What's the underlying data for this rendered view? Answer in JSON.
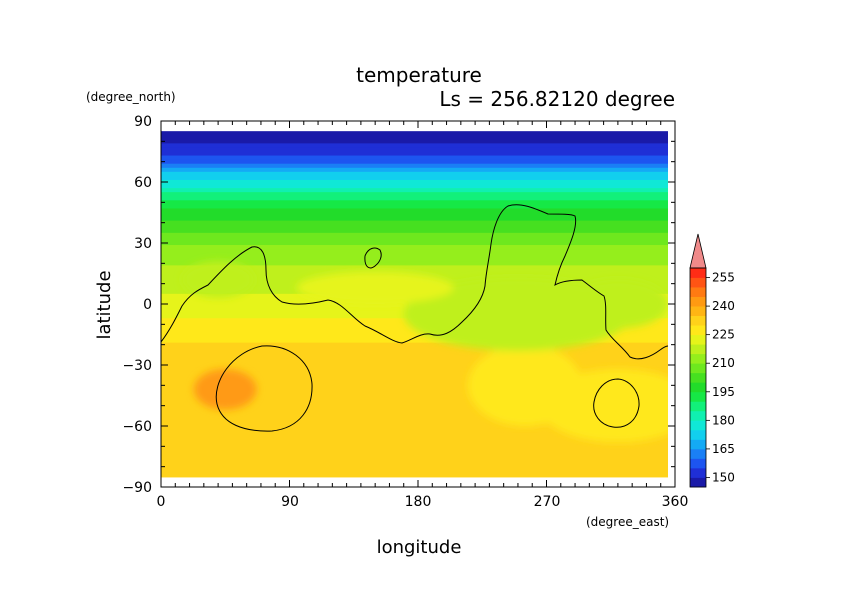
{
  "chart_data": {
    "type": "heatmap",
    "title": "temperature",
    "subtitle": "Ls = 256.82120 degree",
    "xlabel": "longitude",
    "ylabel": "latitude",
    "xunits": "(degree_east)",
    "yunits": "(degree_north)",
    "xlim": [
      0,
      360
    ],
    "ylim": [
      -90,
      90
    ],
    "xticks": [
      "0",
      "90",
      "180",
      "270",
      "360"
    ],
    "yticks": [
      "90",
      "60",
      "30",
      "0",
      "−30",
      "−60",
      "−90"
    ],
    "colorbar": {
      "levels": [
        145,
        150,
        155,
        160,
        165,
        170,
        175,
        180,
        185,
        190,
        195,
        200,
        205,
        210,
        215,
        220,
        225,
        230,
        235,
        240,
        245,
        250,
        255,
        260
      ],
      "labels": [
        "150",
        "165",
        "180",
        "195",
        "210",
        "225",
        "240",
        "255"
      ],
      "colors": [
        "#1a1aa8",
        "#1f2fd6",
        "#1d55f0",
        "#1a7ff5",
        "#14aaf5",
        "#12cfee",
        "#10e8d6",
        "#10f0b0",
        "#12f07a",
        "#16e846",
        "#22dc2a",
        "#46e020",
        "#6ee81e",
        "#95ee1c",
        "#bff01c",
        "#e6f41a",
        "#ffe81a",
        "#ffd21a",
        "#ffb514",
        "#ff9a12",
        "#ff7a12",
        "#ff5414",
        "#ff2c16"
      ],
      "overflow_color": "#f08a8a"
    },
    "contour": "topography outline (black line)",
    "zonal_field_note": "values are temperature in K on a lon/lat grid"
  }
}
